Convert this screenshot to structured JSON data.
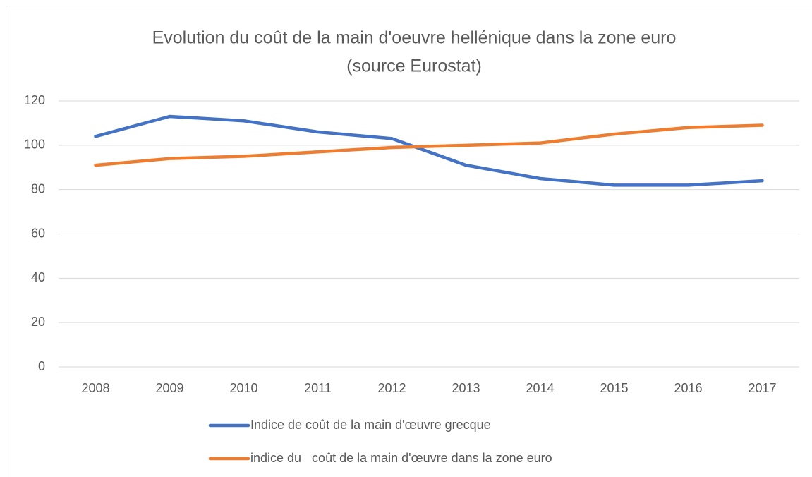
{
  "chart_data": {
    "type": "line",
    "title": [
      "Evolution du coût de la main d'oeuvre hellénique dans la zone euro",
      "(source Eurostat)"
    ],
    "categories": [
      "2008",
      "2009",
      "2010",
      "2011",
      "2012",
      "2013",
      "2014",
      "2015",
      "2016",
      "2017"
    ],
    "series": [
      {
        "name": "Indice de coût de la main d'œuvre grecque",
        "color": "#4472c4",
        "values": [
          104,
          113,
          111,
          106,
          103,
          91,
          85,
          82,
          82,
          84
        ]
      },
      {
        "name": "indice du   coût de la main d'œuvre dans la zone euro",
        "color": "#ed7d31",
        "values": [
          91,
          94,
          95,
          97,
          99,
          100,
          101,
          105,
          108,
          109
        ]
      }
    ],
    "ylim": [
      0,
      120
    ],
    "yticks": [
      0,
      20,
      40,
      60,
      80,
      100,
      120
    ],
    "grid": true,
    "legend": "bottom"
  }
}
